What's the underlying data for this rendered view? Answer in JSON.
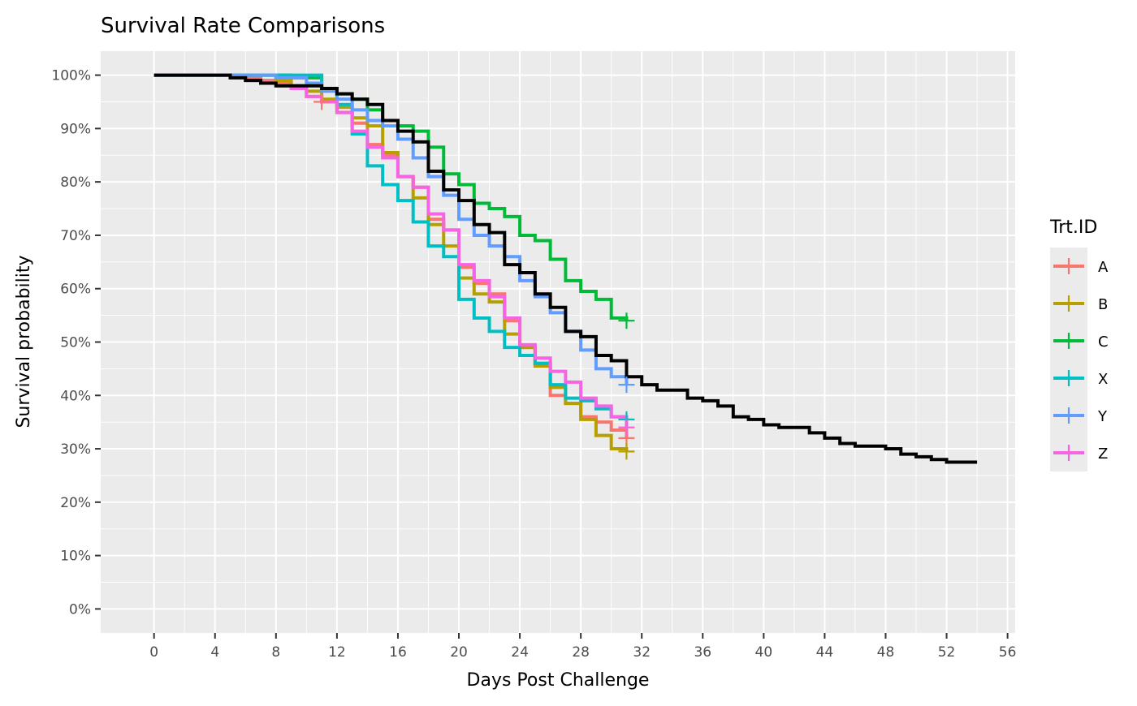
{
  "chart_data": {
    "type": "line",
    "step": true,
    "title": "Survival Rate Comparisons",
    "xlabel": "Days Post Challenge",
    "ylabel": "Survival probability",
    "xlim": [
      -3.5,
      56.5
    ],
    "ylim": [
      -0.045,
      1.045
    ],
    "x_ticks": [
      0,
      4,
      8,
      12,
      16,
      20,
      24,
      28,
      32,
      36,
      40,
      44,
      48,
      52,
      56
    ],
    "y_ticks": [
      0,
      0.1,
      0.2,
      0.3,
      0.4,
      0.5,
      0.6,
      0.7,
      0.8,
      0.9,
      1.0
    ],
    "y_tick_labels": [
      "0%",
      "10%",
      "20%",
      "30%",
      "40%",
      "50%",
      "60%",
      "70%",
      "80%",
      "90%",
      "100%"
    ],
    "grid": true,
    "background": "#ebebeb",
    "legend": {
      "title": "Trt.ID",
      "position": "right",
      "entries": [
        "A",
        "B",
        "C",
        "X",
        "Y",
        "Z"
      ]
    },
    "series": [
      {
        "name": "A",
        "color": "#f8766d",
        "x": [
          0,
          5,
          6,
          7,
          8,
          9,
          10,
          11,
          12,
          13,
          14,
          15,
          16,
          17,
          18,
          19,
          20,
          21,
          22,
          23,
          24,
          25,
          26,
          27,
          28,
          29,
          30,
          31
        ],
        "y": [
          1.0,
          1.0,
          0.995,
          0.99,
          0.985,
          0.98,
          0.96,
          0.95,
          0.93,
          0.91,
          0.87,
          0.85,
          0.81,
          0.79,
          0.73,
          0.71,
          0.64,
          0.61,
          0.59,
          0.54,
          0.49,
          0.46,
          0.4,
          0.385,
          0.36,
          0.35,
          0.335,
          0.32
        ],
        "censor": [
          [
            11,
            0.95
          ],
          [
            31,
            0.32
          ]
        ]
      },
      {
        "name": "B",
        "color": "#b79f00",
        "x": [
          0,
          5,
          8,
          9,
          10,
          11,
          12,
          13,
          14,
          15,
          16,
          17,
          18,
          19,
          20,
          21,
          22,
          23,
          24,
          25,
          26,
          27,
          28,
          29,
          30,
          31
        ],
        "y": [
          1.0,
          1.0,
          0.99,
          0.98,
          0.97,
          0.955,
          0.94,
          0.92,
          0.905,
          0.855,
          0.81,
          0.77,
          0.72,
          0.68,
          0.62,
          0.59,
          0.575,
          0.515,
          0.49,
          0.455,
          0.415,
          0.385,
          0.355,
          0.325,
          0.3,
          0.295
        ],
        "censor": [
          [
            31,
            0.295
          ]
        ]
      },
      {
        "name": "C",
        "color": "#00ba38",
        "x": [
          0,
          5,
          9,
          11,
          12,
          13,
          14,
          15,
          16,
          17,
          18,
          19,
          20,
          21,
          22,
          23,
          24,
          25,
          26,
          27,
          28,
          29,
          30,
          31
        ],
        "y": [
          1.0,
          1.0,
          0.995,
          0.975,
          0.965,
          0.955,
          0.935,
          0.915,
          0.905,
          0.895,
          0.865,
          0.815,
          0.795,
          0.76,
          0.75,
          0.735,
          0.7,
          0.69,
          0.655,
          0.615,
          0.595,
          0.58,
          0.545,
          0.54
        ],
        "censor": [
          [
            31,
            0.54
          ]
        ]
      },
      {
        "name": "X",
        "color": "#00bfc4",
        "x": [
          0,
          11,
          12,
          13,
          14,
          15,
          16,
          17,
          18,
          19,
          20,
          21,
          22,
          23,
          24,
          25,
          26,
          27,
          28,
          29,
          30,
          31
        ],
        "y": [
          1.0,
          0.975,
          0.945,
          0.89,
          0.83,
          0.795,
          0.765,
          0.725,
          0.68,
          0.66,
          0.58,
          0.545,
          0.52,
          0.49,
          0.475,
          0.46,
          0.42,
          0.395,
          0.39,
          0.375,
          0.36,
          0.355
        ],
        "censor": [
          [
            31,
            0.355
          ]
        ]
      },
      {
        "name": "Y",
        "color": "#619cff",
        "x": [
          0,
          8,
          10,
          11,
          12,
          13,
          14,
          15,
          16,
          17,
          18,
          19,
          20,
          21,
          22,
          23,
          24,
          25,
          26,
          27,
          28,
          29,
          30,
          31
        ],
        "y": [
          1.0,
          0.995,
          0.985,
          0.97,
          0.955,
          0.935,
          0.915,
          0.905,
          0.88,
          0.845,
          0.81,
          0.775,
          0.73,
          0.7,
          0.68,
          0.66,
          0.615,
          0.585,
          0.555,
          0.52,
          0.485,
          0.45,
          0.435,
          0.42
        ],
        "censor": [
          [
            31,
            0.42
          ]
        ]
      },
      {
        "name": "Z",
        "color": "#f564e3",
        "x": [
          0,
          5,
          6,
          7,
          8,
          9,
          10,
          11,
          12,
          13,
          14,
          15,
          16,
          17,
          18,
          19,
          20,
          21,
          22,
          23,
          24,
          25,
          26,
          27,
          28,
          29,
          30,
          31
        ],
        "y": [
          1.0,
          0.995,
          0.99,
          0.985,
          0.98,
          0.975,
          0.96,
          0.95,
          0.93,
          0.895,
          0.865,
          0.845,
          0.81,
          0.79,
          0.74,
          0.71,
          0.645,
          0.615,
          0.585,
          0.545,
          0.495,
          0.47,
          0.445,
          0.425,
          0.395,
          0.38,
          0.36,
          0.34
        ],
        "censor": [
          [
            31,
            0.34
          ]
        ]
      },
      {
        "color": "#000000",
        "x": [
          0,
          5,
          6,
          7,
          8,
          9,
          10,
          11,
          12,
          13,
          14,
          15,
          16,
          17,
          18,
          19,
          20,
          21,
          22,
          23,
          24,
          25,
          26,
          27,
          28,
          29,
          30,
          31,
          32,
          33,
          34,
          35,
          36,
          37,
          38,
          39,
          40,
          41,
          42,
          43,
          44,
          45,
          46,
          47,
          48,
          49,
          50,
          51,
          52,
          53,
          54
        ],
        "y": [
          1.0,
          0.995,
          0.99,
          0.985,
          0.98,
          0.98,
          0.98,
          0.975,
          0.965,
          0.955,
          0.945,
          0.915,
          0.895,
          0.875,
          0.82,
          0.785,
          0.765,
          0.72,
          0.705,
          0.645,
          0.63,
          0.59,
          0.565,
          0.52,
          0.51,
          0.475,
          0.465,
          0.435,
          0.42,
          0.41,
          0.41,
          0.395,
          0.39,
          0.38,
          0.36,
          0.355,
          0.345,
          0.34,
          0.34,
          0.33,
          0.32,
          0.31,
          0.305,
          0.305,
          0.3,
          0.29,
          0.285,
          0.28,
          0.275,
          0.275,
          0.275
        ],
        "censor": []
      }
    ]
  }
}
